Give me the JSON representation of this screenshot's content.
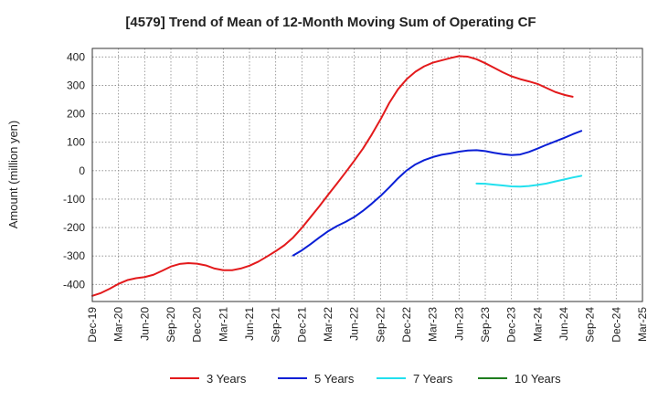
{
  "chart_data": {
    "type": "line",
    "title": "[4579]  Trend of Mean of 12-Month Moving Sum of Operating CF",
    "xlabel": "",
    "ylabel": "Amount (million yen)",
    "x_ticks": [
      "Dec-19",
      "Mar-20",
      "Jun-20",
      "Sep-20",
      "Dec-20",
      "Mar-21",
      "Jun-21",
      "Sep-21",
      "Dec-21",
      "Mar-22",
      "Jun-22",
      "Sep-22",
      "Dec-22",
      "Mar-23",
      "Jun-23",
      "Sep-23",
      "Dec-23",
      "Mar-24",
      "Jun-24",
      "Sep-24",
      "Dec-24",
      "Mar-25"
    ],
    "y_ticks": [
      400,
      300,
      200,
      100,
      0,
      -100,
      -200,
      -300,
      -400
    ],
    "ylim": [
      -460,
      430
    ],
    "grid": true,
    "legend_position": "bottom",
    "series": [
      {
        "name": "3 Years",
        "color": "#e31a1c",
        "values": [
          -440,
          -430,
          -415,
          -398,
          -385,
          -378,
          -374,
          -366,
          -352,
          -337,
          -328,
          -325,
          -327,
          -333,
          -344,
          -350,
          -350,
          -344,
          -334,
          -320,
          -302,
          -283,
          -262,
          -235,
          -201,
          -163,
          -125,
          -85,
          -46,
          -6,
          35,
          78,
          127,
          180,
          238,
          286,
          322,
          348,
          367,
          380,
          388,
          396,
          403,
          401,
          392,
          378,
          362,
          346,
          332,
          322,
          314,
          305,
          291,
          277,
          267,
          260
        ]
      },
      {
        "name": "5 Years",
        "color": "#0a1fd6",
        "values": [
          null,
          null,
          null,
          null,
          null,
          null,
          null,
          null,
          null,
          null,
          null,
          null,
          null,
          null,
          null,
          null,
          null,
          null,
          null,
          null,
          null,
          null,
          null,
          -298,
          -280,
          -258,
          -235,
          -213,
          -195,
          -180,
          -163,
          -141,
          -116,
          -89,
          -59,
          -27,
          1,
          22,
          37,
          48,
          56,
          61,
          67,
          71,
          72,
          69,
          63,
          58,
          55,
          57,
          66,
          78,
          91,
          103,
          115,
          128,
          140
        ]
      },
      {
        "name": "7 Years",
        "color": "#22e0ee",
        "values": [
          null,
          null,
          null,
          null,
          null,
          null,
          null,
          null,
          null,
          null,
          null,
          null,
          null,
          null,
          null,
          null,
          null,
          null,
          null,
          null,
          null,
          null,
          null,
          null,
          null,
          null,
          null,
          null,
          null,
          null,
          null,
          null,
          null,
          null,
          null,
          null,
          null,
          null,
          null,
          null,
          null,
          null,
          null,
          null,
          -45,
          -46,
          -49,
          -52,
          -55,
          -56,
          -54,
          -50,
          -45,
          -38,
          -31,
          -24,
          -18
        ]
      },
      {
        "name": "10 Years",
        "color": "#1e7d1e",
        "values": []
      }
    ]
  }
}
